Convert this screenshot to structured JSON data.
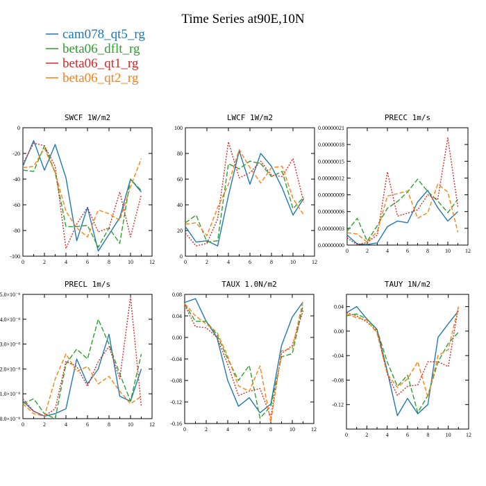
{
  "title": "Time Series at90E,10N",
  "legend": [
    {
      "name": "cam078_qt5_rg",
      "color": "#1f77b4",
      "dash": ""
    },
    {
      "name": "beta06_dflt_rg",
      "color": "#2ca02c",
      "dash": "7,3"
    },
    {
      "name": "beta06_qt1_rg",
      "color": "#d62728",
      "dash": "2,2"
    },
    {
      "name": "beta06_qt2_rg",
      "color": "#ff7f0e",
      "dash": "6,3"
    }
  ],
  "chart_data": [
    {
      "type": "line",
      "title": "SWCF   1W/m2",
      "x": [
        0,
        1,
        2,
        3,
        4,
        5,
        6,
        7,
        8,
        9,
        10,
        11
      ],
      "xlim": [
        0,
        12
      ],
      "xticks": [
        0,
        2,
        4,
        6,
        8,
        10,
        12
      ],
      "ylim": [
        -100,
        0
      ],
      "yticks": [
        0,
        -20,
        -40,
        -60,
        -80,
        -100
      ],
      "ytick_labels": [
        "0",
        "-20",
        "-40",
        "-60",
        "-80",
        "-100"
      ],
      "series": [
        {
          "name": "cam078_qt5_rg",
          "values": [
            -30,
            -10,
            -33,
            -13,
            -39,
            -88,
            -62,
            -96,
            -83,
            -70,
            -40,
            -50
          ]
        },
        {
          "name": "beta06_dflt_rg",
          "values": [
            -33,
            -34,
            -14,
            -35,
            -77,
            -77,
            -76,
            -93,
            -78,
            -90,
            -40,
            -49
          ]
        },
        {
          "name": "beta06_qt1_rg",
          "values": [
            -28,
            -12,
            -14,
            -30,
            -94,
            -75,
            -62,
            -81,
            -78,
            -50,
            -85,
            -52
          ]
        },
        {
          "name": "beta06_qt2_rg",
          "values": [
            -31,
            -30,
            -16,
            -35,
            -65,
            -78,
            -85,
            -64,
            -67,
            -72,
            -46,
            -24
          ]
        }
      ]
    },
    {
      "type": "line",
      "title": "LWCF   1W/m2",
      "x": [
        0,
        1,
        2,
        3,
        4,
        5,
        6,
        7,
        8,
        9,
        10,
        11
      ],
      "xlim": [
        0,
        12
      ],
      "xticks": [
        0,
        2,
        4,
        6,
        8,
        10,
        12
      ],
      "ylim": [
        0,
        100
      ],
      "yticks": [
        0,
        20,
        40,
        60,
        80,
        100
      ],
      "ytick_labels": [
        "0",
        "20",
        "40",
        "60",
        "80",
        "100"
      ],
      "series": [
        {
          "name": "cam078_qt5_rg",
          "values": [
            23,
            11,
            12,
            8,
            47,
            82,
            56,
            80,
            70,
            53,
            32,
            45
          ]
        },
        {
          "name": "beta06_dflt_rg",
          "values": [
            26,
            32,
            11,
            12,
            72,
            68,
            74,
            72,
            62,
            66,
            37,
            46
          ]
        },
        {
          "name": "beta06_qt1_rg",
          "values": [
            18,
            8,
            10,
            29,
            89,
            61,
            65,
            74,
            63,
            62,
            76,
            42
          ]
        },
        {
          "name": "beta06_qt2_rg",
          "values": [
            25,
            26,
            16,
            38,
            56,
            83,
            69,
            57,
            69,
            70,
            45,
            32
          ]
        }
      ]
    },
    {
      "type": "line",
      "title": "PRECC   1m/s",
      "x": [
        0,
        1,
        2,
        3,
        4,
        5,
        6,
        7,
        8,
        9,
        10,
        11
      ],
      "xlim": [
        0,
        12
      ],
      "xticks": [
        0,
        2,
        4,
        6,
        8,
        10,
        12
      ],
      "ylim": [
        0,
        2.1e-07
      ],
      "yticks": [
        0,
        3e-08,
        6e-08,
        9e-08,
        1.2e-07,
        1.5e-07,
        1.8e-07,
        2.1e-07
      ],
      "ytick_labels": [
        "0.00000000",
        "0.00000003",
        "0.00000006",
        "0.00000009",
        "0.00000012",
        "0.00000015",
        "0.00000018",
        "0.00000021"
      ],
      "series": [
        {
          "name": "cam078_qt5_rg",
          "values": [
            1.8e-08,
            2e-09,
            1e-09,
            4e-09,
            3.3e-08,
            4.3e-08,
            4e-08,
            7.7e-08,
            9.8e-08,
            6.7e-08,
            4.3e-08,
            6e-08
          ]
        },
        {
          "name": "beta06_dflt_rg",
          "values": [
            2.5e-08,
            4.8e-08,
            7e-09,
            3.5e-08,
            6.6e-08,
            7.8e-08,
            9.5e-08,
            1.18e-07,
            9.6e-08,
            7.9e-08,
            5.8e-08,
            8.2e-08
          ]
        },
        {
          "name": "beta06_qt1_rg",
          "values": [
            1.3e-08,
            5e-10,
            5e-09,
            1.8e-08,
            1.31e-07,
            5.2e-08,
            5.7e-08,
            6.3e-08,
            9e-08,
            8.2e-08,
            1.92e-07,
            6.8e-08
          ]
        },
        {
          "name": "beta06_qt2_rg",
          "values": [
            2.2e-08,
            2e-08,
            5e-09,
            2.5e-08,
            8.8e-08,
            9.2e-08,
            9.7e-08,
            4.8e-08,
            5.8e-08,
            1.09e-07,
            9.5e-08,
            2.3e-08
          ]
        }
      ]
    },
    {
      "type": "line",
      "title": "PRECL   1m/s",
      "x": [
        0,
        1,
        2,
        3,
        4,
        5,
        6,
        7,
        8,
        9,
        10,
        11
      ],
      "xlim": [
        0,
        12
      ],
      "xticks": [
        0,
        2,
        4,
        6,
        8,
        10,
        12
      ],
      "ylim": [
        0,
        5
      ],
      "yticks": [
        0,
        1,
        2,
        3,
        4,
        5
      ],
      "ytick_labels": [
        "0.0×10⁻⁸",
        "1.0×10⁻⁸",
        "2.0×10⁻⁸",
        "3.0×10⁻⁸",
        "4.0×10⁻⁸",
        "5.0×10⁻⁸"
      ],
      "series": [
        {
          "name": "cam078_qt5_rg",
          "values": [
            0.7,
            0.3,
            0.1,
            0.2,
            0.4,
            2.4,
            1.4,
            2.0,
            3.4,
            0.9,
            0.7,
            2.0
          ]
        },
        {
          "name": "beta06_dflt_rg",
          "values": [
            0.6,
            0.8,
            0.2,
            0.0,
            2.2,
            2.8,
            2.4,
            4.0,
            3.0,
            1.8,
            0.7,
            2.6
          ]
        },
        {
          "name": "beta06_qt1_rg",
          "values": [
            0.8,
            0.3,
            0.1,
            0.4,
            2.3,
            2.1,
            1.3,
            2.3,
            2.9,
            1.6,
            4.9,
            0.5
          ]
        },
        {
          "name": "beta06_qt2_rg",
          "values": [
            0.6,
            0.2,
            0.1,
            1.6,
            2.6,
            1.9,
            2.1,
            1.4,
            1.7,
            1.1,
            0.6,
            0.9
          ]
        }
      ]
    },
    {
      "type": "line",
      "title": "TAUX   1.0N/m2",
      "x": [
        0,
        1,
        2,
        3,
        4,
        5,
        6,
        7,
        8,
        9,
        10,
        11
      ],
      "xlim": [
        0,
        12
      ],
      "xticks": [
        0,
        2,
        4,
        6,
        8,
        10,
        12
      ],
      "ylim": [
        -0.16,
        0.08
      ],
      "yticks": [
        0.08,
        0.04,
        0,
        -0.04,
        -0.08,
        -0.12,
        -0.16
      ],
      "ytick_labels": [
        "0.08",
        "0.04",
        "0.00",
        "-0.04",
        "-0.08",
        "-0.12",
        "-0.16"
      ],
      "series": [
        {
          "name": "cam078_qt5_rg",
          "values": [
            0.065,
            0.072,
            0.03,
            0.0,
            -0.08,
            -0.128,
            -0.112,
            -0.14,
            -0.124,
            -0.015,
            0.038,
            0.066
          ]
        },
        {
          "name": "beta06_dflt_rg",
          "values": [
            0.062,
            0.03,
            0.03,
            0.005,
            -0.04,
            -0.08,
            -0.052,
            -0.15,
            -0.128,
            -0.036,
            -0.03,
            0.06
          ]
        },
        {
          "name": "beta06_qt1_rg",
          "values": [
            0.06,
            0.02,
            0.018,
            0.0,
            -0.05,
            -0.108,
            -0.1,
            -0.095,
            -0.148,
            -0.03,
            -0.015,
            0.05
          ]
        },
        {
          "name": "beta06_qt2_rg",
          "values": [
            0.063,
            0.04,
            0.025,
            0.01,
            -0.035,
            -0.09,
            -0.1,
            -0.053,
            -0.158,
            -0.025,
            -0.02,
            0.068
          ]
        }
      ]
    },
    {
      "type": "line",
      "title": "TAUY   1N/m2",
      "x": [
        0,
        1,
        2,
        3,
        4,
        5,
        6,
        7,
        8,
        9,
        10,
        11
      ],
      "xlim": [
        0,
        12
      ],
      "xticks": [
        0,
        2,
        4,
        6,
        8,
        10,
        12
      ],
      "ylim": [
        -0.16,
        0.06
      ],
      "yticks": [
        0.04,
        0,
        -0.04,
        -0.08,
        -0.12
      ],
      "ytick_labels": [
        "0.04",
        "0.00",
        "-0.04",
        "-0.08",
        "-0.12"
      ],
      "series": [
        {
          "name": "cam078_qt5_rg",
          "values": [
            0.03,
            0.04,
            0.02,
            0.003,
            -0.065,
            -0.138,
            -0.11,
            -0.135,
            -0.12,
            -0.01,
            0.012,
            0.033
          ]
        },
        {
          "name": "beta06_dflt_rg",
          "values": [
            0.025,
            0.028,
            0.02,
            0.002,
            -0.05,
            -0.09,
            -0.072,
            -0.133,
            -0.105,
            -0.05,
            -0.02,
            -0.002
          ]
        },
        {
          "name": "beta06_qt1_rg",
          "values": [
            0.03,
            0.025,
            0.015,
            0.0,
            -0.07,
            -0.105,
            -0.09,
            -0.088,
            -0.05,
            -0.05,
            -0.058,
            0.04
          ]
        },
        {
          "name": "beta06_qt2_rg",
          "values": [
            0.028,
            0.022,
            0.018,
            -0.003,
            -0.07,
            -0.092,
            -0.078,
            -0.05,
            -0.108,
            -0.04,
            -0.03,
            0.04
          ]
        }
      ]
    }
  ]
}
